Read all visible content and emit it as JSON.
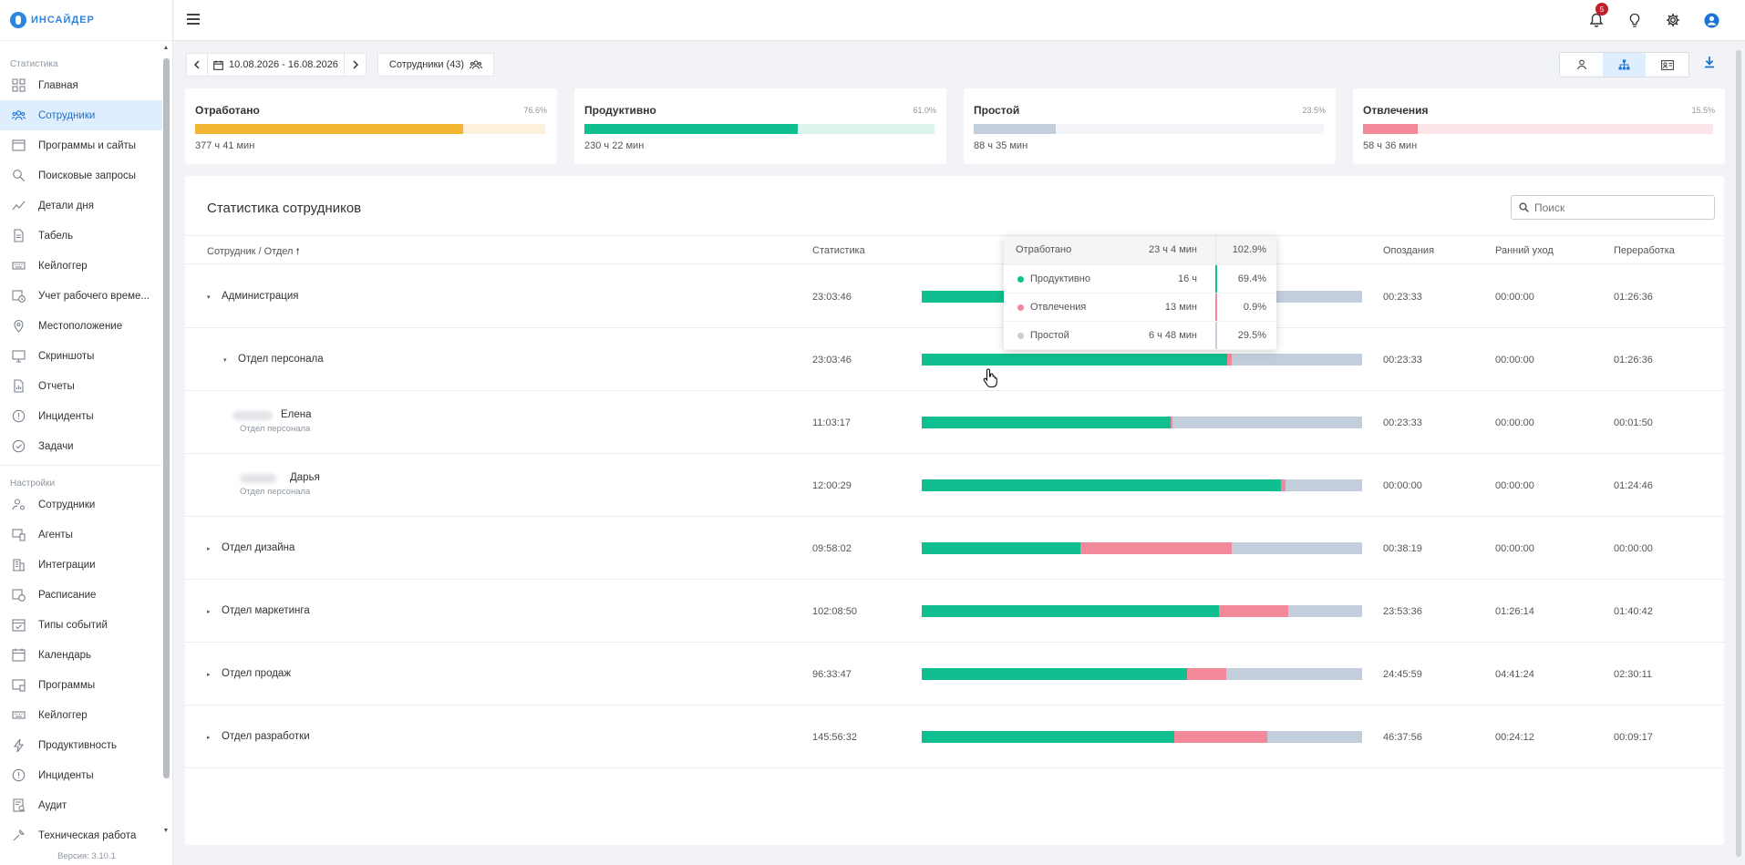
{
  "app": {
    "logo_text": "ИНСАЙДЕР",
    "version": "Версия: 3.10.1",
    "notifications_count": "5"
  },
  "sidebar": {
    "section_stats": "Статистика",
    "stats_items": [
      {
        "label": "Главная",
        "icon": "dashboard-icon"
      },
      {
        "label": "Сотрудники",
        "icon": "users-icon",
        "active": true
      },
      {
        "label": "Программы и сайты",
        "icon": "window-icon"
      },
      {
        "label": "Поисковые запросы",
        "icon": "search-icon"
      },
      {
        "label": "Детали дня",
        "icon": "chart-line-icon"
      },
      {
        "label": "Табель",
        "icon": "document-icon"
      },
      {
        "label": "Кейлоггер",
        "icon": "keyboard-icon"
      },
      {
        "label": "Учет рабочего време...",
        "icon": "clock-calendar-icon"
      },
      {
        "label": "Местоположение",
        "icon": "location-icon"
      },
      {
        "label": "Скриншоты",
        "icon": "monitor-icon"
      },
      {
        "label": "Отчеты",
        "icon": "report-icon"
      },
      {
        "label": "Инциденты",
        "icon": "alert-icon"
      },
      {
        "label": "Задачи",
        "icon": "check-circle-icon"
      }
    ],
    "section_settings": "Настройки",
    "settings_items": [
      {
        "label": "Сотрудники",
        "icon": "user-settings-icon"
      },
      {
        "label": "Агенты",
        "icon": "agent-icon"
      },
      {
        "label": "Интеграции",
        "icon": "building-icon"
      },
      {
        "label": "Расписание",
        "icon": "schedule-icon"
      },
      {
        "label": "Типы событий",
        "icon": "calendar-check-icon"
      },
      {
        "label": "Календарь",
        "icon": "calendar-icon"
      },
      {
        "label": "Программы",
        "icon": "programs-icon"
      },
      {
        "label": "Кейлоггер",
        "icon": "keyboard-icon"
      },
      {
        "label": "Продуктивность",
        "icon": "bolt-icon"
      },
      {
        "label": "Инциденты",
        "icon": "alert-icon"
      },
      {
        "label": "Аудит",
        "icon": "audit-icon"
      },
      {
        "label": "Техническая работа",
        "icon": "tools-icon"
      }
    ]
  },
  "toolbar": {
    "date_range": "10.08.2026 - 16.08.2026",
    "employees_filter": "Сотрудники (43)"
  },
  "summary": [
    {
      "title": "Отработано",
      "pct": "76.6%",
      "fill": 0.766,
      "value": "377 ч 41 мин",
      "color": "#f2b632",
      "bg": "#fdf1dc"
    },
    {
      "title": "Продуктивно",
      "pct": "61.0%",
      "fill": 0.61,
      "value": "230 ч 22 мин",
      "color": "#0fbf8f",
      "bg": "#dcf5ec"
    },
    {
      "title": "Простой",
      "pct": "23.5%",
      "fill": 0.235,
      "value": "88 ч 35 мин",
      "color": "#c3cedc",
      "bg": "#f3f5f8"
    },
    {
      "title": "Отвлечения",
      "pct": "15.5%",
      "fill": 0.155,
      "value": "58 ч 36 мин",
      "color": "#f2899a",
      "bg": "#fde6ea"
    }
  ],
  "panel": {
    "title": "Статистика сотрудников",
    "search_placeholder": "Поиск",
    "columns": {
      "name": "Сотрудник / Отдел",
      "stats": "Статистика",
      "late": "Опоздания",
      "early": "Ранний уход",
      "overtime": "Переработка"
    }
  },
  "rows": [
    {
      "name": "Администрация",
      "sub": "",
      "level": 0,
      "caret": "▾",
      "time": "23:03:46",
      "p": 0.694,
      "d": 0.009,
      "late": "00:23:33",
      "early": "00:00:00",
      "over": "01:26:36"
    },
    {
      "name": "Отдел персонала",
      "sub": "",
      "level": 1,
      "caret": "▾",
      "time": "23:03:46",
      "p": 0.694,
      "d": 0.009,
      "late": "00:23:33",
      "early": "00:00:00",
      "over": "01:26:36"
    },
    {
      "name": "Елена",
      "sub": "Отдел персонала",
      "level": 2,
      "caret": "",
      "time": "11:03:17",
      "p": 0.565,
      "d": 0.005,
      "late": "00:23:33",
      "early": "00:00:00",
      "over": "00:01:50"
    },
    {
      "name": "Дарья",
      "sub": "Отдел персонала",
      "level": 2,
      "caret": "",
      "time": "12:00:29",
      "p": 0.815,
      "d": 0.012,
      "late": "00:00:00",
      "early": "00:00:00",
      "over": "01:24:46"
    },
    {
      "name": "Отдел дизайна",
      "sub": "",
      "level": 0,
      "caret": "▸",
      "time": "09:58:02",
      "p": 0.36,
      "d": 0.343,
      "late": "00:38:19",
      "early": "00:00:00",
      "over": "00:00:00"
    },
    {
      "name": "Отдел маркетинга",
      "sub": "",
      "level": 0,
      "caret": "▸",
      "time": "102:08:50",
      "p": 0.675,
      "d": 0.157,
      "late": "23:53:36",
      "early": "01:26:14",
      "over": "01:40:42"
    },
    {
      "name": "Отдел продаж",
      "sub": "",
      "level": 0,
      "caret": "▸",
      "time": "96:33:47",
      "p": 0.603,
      "d": 0.088,
      "late": "24:45:59",
      "early": "04:41:24",
      "over": "02:30:11"
    },
    {
      "name": "Отдел разработки",
      "sub": "",
      "level": 0,
      "caret": "▸",
      "time": "145:56:32",
      "p": 0.573,
      "d": 0.212,
      "late": "46:37:56",
      "early": "00:24:12",
      "over": "00:09:17"
    }
  ],
  "tooltip": {
    "head": {
      "label": "Отработано",
      "value": "23 ч 4 мин",
      "pct": "102.9%"
    },
    "items": [
      {
        "label": "Продуктивно",
        "value": "16 ч",
        "pct": "69.4%",
        "color": "#0fbf8f"
      },
      {
        "label": "Отвлечения",
        "value": "13 мин",
        "pct": "0.9%",
        "color": "#f2899a"
      },
      {
        "label": "Простой",
        "value": "6 ч 48 мин",
        "pct": "29.5%",
        "color": "#c3cedc"
      }
    ]
  }
}
